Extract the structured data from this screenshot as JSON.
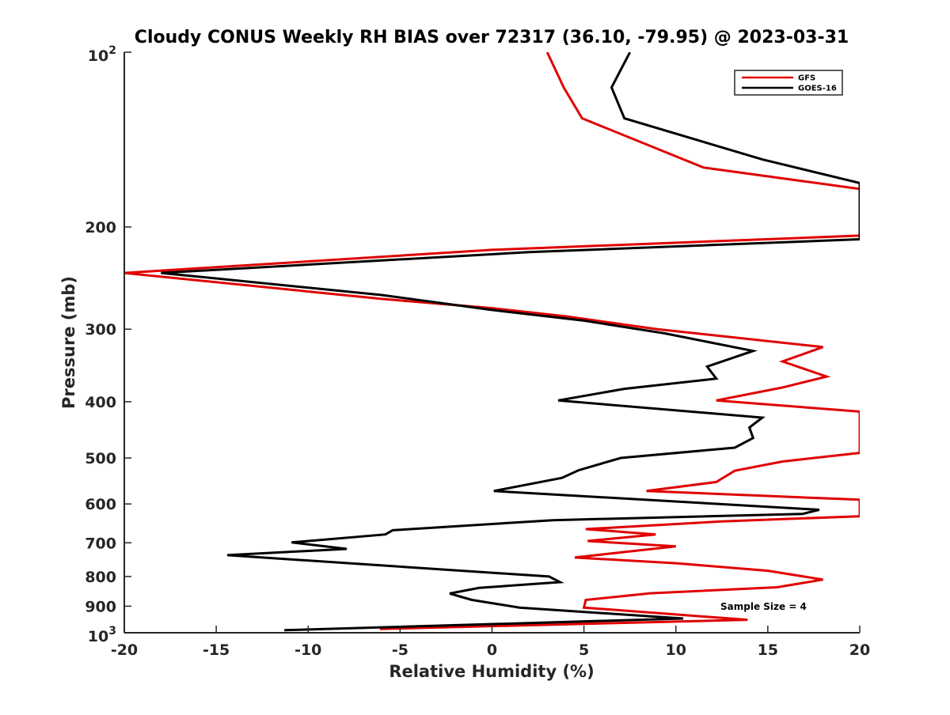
{
  "chart_data": {
    "type": "line",
    "title": "Cloudy CONUS Weekly RH BIAS over 72317 (36.10, -79.95) @ 2023-03-31",
    "xlabel": "Relative Humidity (%)",
    "ylabel": "Pressure (mb)",
    "xlim": [
      -20,
      20
    ],
    "ylim": [
      100,
      1000
    ],
    "yscale": "log",
    "y_reversed": true,
    "grid": false,
    "legend_position": "top-right",
    "x_ticks": [
      "-20",
      "-15",
      "-10",
      "-5",
      "0",
      "5",
      "10",
      "15",
      "20"
    ],
    "y_ticks": [
      {
        "value": 100,
        "label": "10",
        "sup": "2"
      },
      {
        "value": 200,
        "label": "200",
        "sup": ""
      },
      {
        "value": 300,
        "label": "300",
        "sup": ""
      },
      {
        "value": 400,
        "label": "400",
        "sup": ""
      },
      {
        "value": 500,
        "label": "500",
        "sup": ""
      },
      {
        "value": 600,
        "label": "600",
        "sup": ""
      },
      {
        "value": 700,
        "label": "700",
        "sup": ""
      },
      {
        "value": 800,
        "label": "800",
        "sup": ""
      },
      {
        "value": 900,
        "label": "900",
        "sup": ""
      },
      {
        "value": 1000,
        "label": "10",
        "sup": "3"
      }
    ],
    "annotation": "Sample Size = 4",
    "series": [
      {
        "name": "GFS",
        "color": "#e00000",
        "points": [
          [
            3.0,
            100
          ],
          [
            3.9,
            115
          ],
          [
            4.9,
            130
          ],
          [
            11.5,
            158
          ],
          [
            20.0,
            172
          ],
          [
            20.0,
            207
          ],
          [
            0,
            219
          ],
          [
            -20,
            240
          ],
          [
            -6,
            266
          ],
          [
            0,
            276
          ],
          [
            4,
            285
          ],
          [
            9,
            300
          ],
          [
            18,
            322
          ],
          [
            15.8,
            341
          ],
          [
            18.2,
            362
          ],
          [
            15.8,
            378
          ],
          [
            12.2,
            398
          ],
          [
            20.0,
            416
          ],
          [
            20.0,
            490
          ],
          [
            15.8,
            507
          ],
          [
            13.2,
            526
          ],
          [
            12.2,
            550
          ],
          [
            8.4,
            570
          ],
          [
            20.0,
            590
          ],
          [
            20.0,
            630
          ],
          [
            12.5,
            643
          ],
          [
            5.1,
            663
          ],
          [
            8.9,
            677
          ],
          [
            5.2,
            695
          ],
          [
            10.0,
            710
          ],
          [
            4.5,
            742
          ],
          [
            10.0,
            759
          ],
          [
            15.0,
            782
          ],
          [
            18.0,
            810
          ],
          [
            15.5,
            835
          ],
          [
            8.6,
            855
          ],
          [
            5.1,
            878
          ],
          [
            5.0,
            905
          ],
          [
            10.0,
            930
          ],
          [
            13.9,
            950
          ],
          [
            -6.1,
            985
          ]
        ]
      },
      {
        "name": "GOES-16",
        "color": "#000000",
        "points": [
          [
            7.5,
            100
          ],
          [
            6.5,
            115
          ],
          [
            7.2,
            130
          ],
          [
            14.7,
            153
          ],
          [
            20.0,
            168
          ],
          [
            20.0,
            210
          ],
          [
            2,
            221
          ],
          [
            -18,
            240
          ],
          [
            -6,
            262
          ],
          [
            0,
            278
          ],
          [
            5,
            290
          ],
          [
            9.4,
            305
          ],
          [
            14.2,
            327
          ],
          [
            11.7,
            348
          ],
          [
            12.2,
            365
          ],
          [
            7.2,
            380
          ],
          [
            3.6,
            398
          ],
          [
            14.7,
            426
          ],
          [
            14.0,
            443
          ],
          [
            14.2,
            462
          ],
          [
            13.2,
            480
          ],
          [
            7.0,
            500
          ],
          [
            4.7,
            525
          ],
          [
            3.8,
            541
          ],
          [
            0.1,
            570
          ],
          [
            17.8,
            614
          ],
          [
            16.9,
            624
          ],
          [
            3.3,
            640
          ],
          [
            -5.4,
            666
          ],
          [
            -5.8,
            677
          ],
          [
            -10.9,
            699
          ],
          [
            -7.9,
            717
          ],
          [
            -14.4,
            735
          ],
          [
            3.1,
            800
          ],
          [
            3.7,
            818
          ],
          [
            -0.7,
            837
          ],
          [
            -2.3,
            856
          ],
          [
            -1.1,
            878
          ],
          [
            1.5,
            905
          ],
          [
            10.4,
            945
          ],
          [
            -11.3,
            990
          ]
        ]
      }
    ]
  }
}
